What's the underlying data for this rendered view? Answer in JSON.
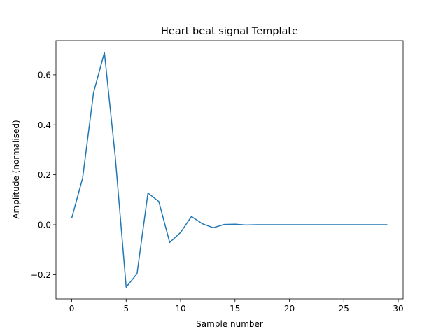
{
  "chart_data": {
    "type": "line",
    "title": "Heart beat signal Template",
    "xlabel": "Sample number",
    "ylabel": "Amplitude (normalised)",
    "xlim": [
      -1.45,
      30.45
    ],
    "ylim": [
      -0.297,
      0.737
    ],
    "xticks": [
      0,
      5,
      10,
      15,
      20,
      25,
      30
    ],
    "yticks": [
      -0.2,
      0.0,
      0.2,
      0.4,
      0.6
    ],
    "grid": false,
    "series": [
      {
        "color": "#1f77b4",
        "x": [
          0,
          1,
          2,
          3,
          4,
          5,
          6,
          7,
          8,
          9,
          10,
          11,
          12,
          13,
          14,
          15,
          16,
          17,
          18,
          19,
          20,
          21,
          22,
          23,
          24,
          25,
          26,
          27,
          28,
          29
        ],
        "values": [
          0.027,
          0.187,
          0.528,
          0.689,
          0.271,
          -0.25,
          -0.196,
          0.127,
          0.093,
          -0.071,
          -0.031,
          0.033,
          0.004,
          -0.012,
          0.001,
          0.002,
          -0.001,
          0.0,
          0.0,
          0.0,
          0.0,
          0.0,
          0.0,
          0.0,
          0.0,
          0.0,
          0.0,
          0.0,
          0.0,
          0.0
        ]
      }
    ]
  }
}
